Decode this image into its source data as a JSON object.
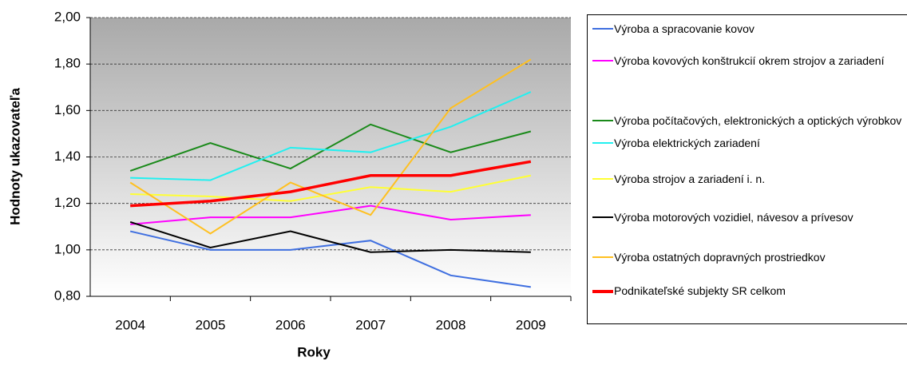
{
  "chart_data": {
    "type": "line",
    "xlabel": "Roky",
    "ylabel": "Hodnoty ukazovateľa",
    "categories": [
      "2004",
      "2005",
      "2006",
      "2007",
      "2008",
      "2009"
    ],
    "ylim": [
      0.8,
      2.0
    ],
    "yticks": [
      {
        "value": 0.8,
        "label": "0,80"
      },
      {
        "value": 1.0,
        "label": "1,00"
      },
      {
        "value": 1.2,
        "label": "1,20"
      },
      {
        "value": 1.4,
        "label": "1,40"
      },
      {
        "value": 1.6,
        "label": "1,60"
      },
      {
        "value": 1.8,
        "label": "1,80"
      },
      {
        "value": 2.0,
        "label": "2,00"
      }
    ],
    "grid": true,
    "series": [
      {
        "name": "Výroba a spracovanie kovov",
        "color": "#3f6fe0",
        "values": [
          1.08,
          1.0,
          1.0,
          1.04,
          0.89,
          0.84
        ]
      },
      {
        "name": "Výroba kovových konštrukcií okrem strojov a zariadení",
        "color": "#ff00ff",
        "values": [
          1.11,
          1.14,
          1.14,
          1.19,
          1.13,
          1.15
        ]
      },
      {
        "name": "Výroba počítačových, elektronických a optických výrobkov",
        "color": "#1a8a1a",
        "values": [
          1.34,
          1.46,
          1.35,
          1.54,
          1.42,
          1.51
        ]
      },
      {
        "name": "Výroba elektrických zariadení",
        "color": "#22f0f0",
        "values": [
          1.31,
          1.3,
          1.44,
          1.42,
          1.53,
          1.68
        ]
      },
      {
        "name": "Výroba strojov a zariadení i. n.",
        "color": "#ffff33",
        "values": [
          1.24,
          1.23,
          1.21,
          1.27,
          1.25,
          1.32
        ]
      },
      {
        "name": "Výroba motorových vozidiel, návesov a prívesov",
        "color": "#000000",
        "values": [
          1.12,
          1.01,
          1.08,
          0.99,
          1.0,
          0.99
        ]
      },
      {
        "name": "Výroba ostatných dopravných prostriedkov",
        "color": "#ffc020",
        "values": [
          1.29,
          1.07,
          1.29,
          1.15,
          1.61,
          1.82
        ]
      },
      {
        "name": "Podnikateľské subjekty SR celkom",
        "color": "#ff0000",
        "values": [
          1.19,
          1.21,
          1.25,
          1.32,
          1.32,
          1.38
        ]
      }
    ]
  }
}
